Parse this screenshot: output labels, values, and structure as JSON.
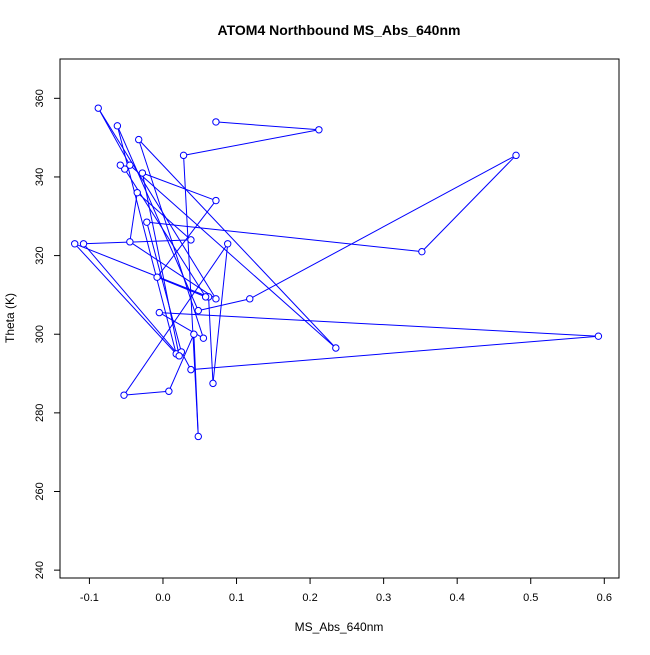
{
  "chart_data": {
    "type": "scatter",
    "title": "ATOM4 Northbound MS_Abs_640nm",
    "xlabel": "MS_Abs_640nm",
    "ylabel": "Theta (K)",
    "xlim": [
      -0.14,
      0.62
    ],
    "ylim": [
      238,
      370
    ],
    "x_ticks": [
      -0.1,
      0.0,
      0.1,
      0.2,
      0.3,
      0.4,
      0.5,
      0.6
    ],
    "x_tick_labels": [
      "-0.1",
      "0.0",
      "0.1",
      "0.2",
      "0.3",
      "0.4",
      "0.5",
      "0.6"
    ],
    "y_ticks": [
      240,
      260,
      280,
      300,
      320,
      340,
      360
    ],
    "y_tick_labels": [
      "240",
      "260",
      "280",
      "300",
      "320",
      "340",
      "360"
    ],
    "grid": false,
    "series": [
      {
        "color": "#0000ff",
        "marker": "open-circle",
        "connected": true,
        "x": [
          0.072,
          0.212,
          0.028,
          0.048,
          0.042,
          0.008,
          -0.053,
          0.088,
          0.068,
          0.062,
          -0.12,
          0.018,
          -0.062,
          0.048,
          0.118,
          0.48,
          0.352,
          -0.022,
          0.025,
          0.038,
          0.592,
          -0.005,
          0.055,
          -0.033,
          0.235,
          -0.045,
          -0.088,
          0.072,
          -0.045,
          -0.035,
          0.038,
          -0.108,
          0.022,
          -0.028,
          0.072,
          -0.008,
          0.058,
          -0.052,
          -0.058
        ],
        "y": [
          354,
          352,
          345.5,
          274,
          300,
          285.5,
          284.5,
          323,
          287.5,
          309.5,
          323,
          295,
          353,
          306,
          309,
          345.5,
          321,
          328.5,
          295.5,
          291,
          299.5,
          305.5,
          299,
          349.5,
          296.5,
          343,
          357.5,
          309,
          323.5,
          336,
          324,
          323,
          294.5,
          341,
          334,
          314.5,
          309.5,
          342,
          343
        ]
      }
    ]
  }
}
